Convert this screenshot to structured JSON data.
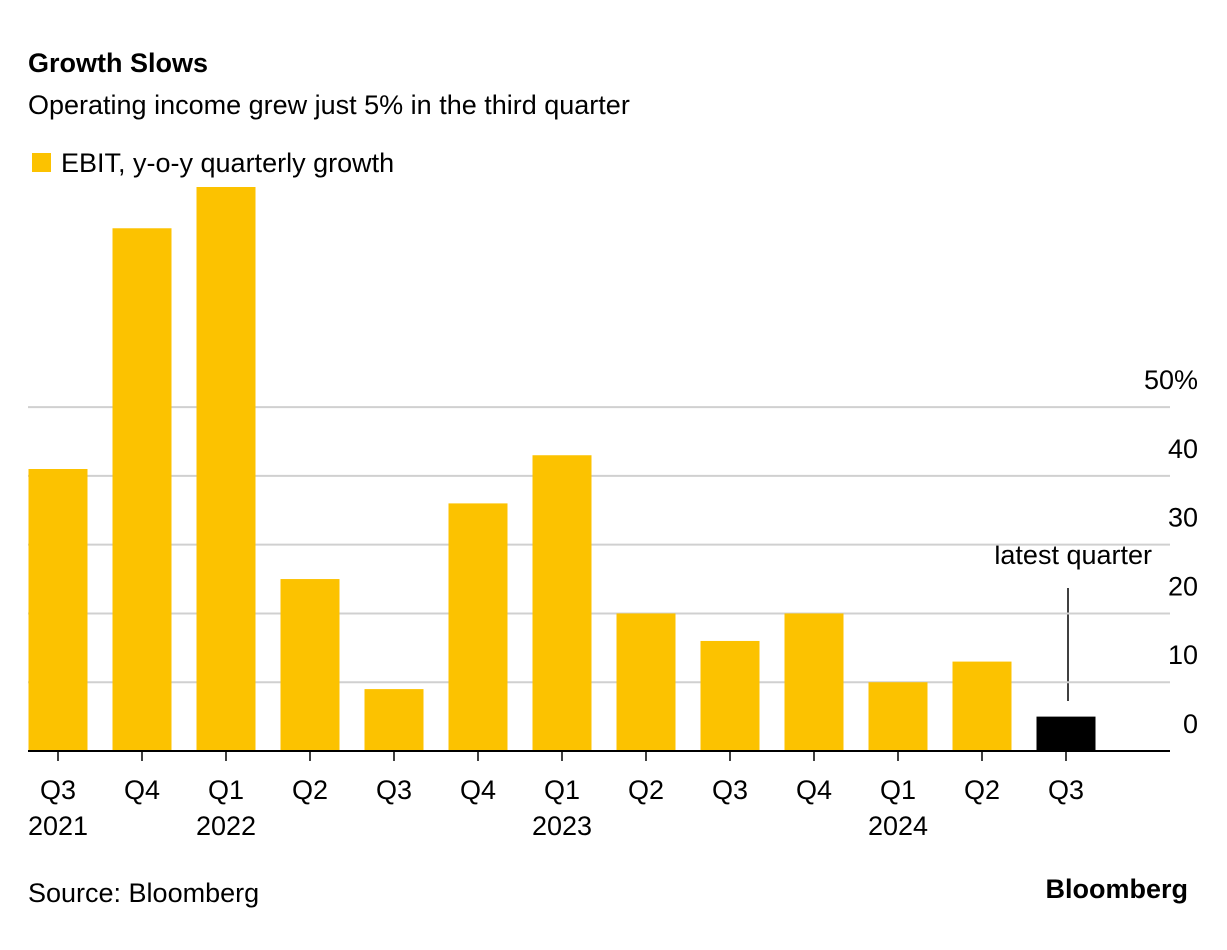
{
  "chart_data": {
    "type": "bar",
    "title": "Growth Slows",
    "subtitle": "Operating income grew just 5% in the third quarter",
    "legend": "EBIT, y-o-y quarterly growth",
    "categories": [
      "Q3",
      "Q4",
      "Q1",
      "Q2",
      "Q3",
      "Q4",
      "Q1",
      "Q2",
      "Q3",
      "Q4",
      "Q1",
      "Q2",
      "Q3"
    ],
    "year_labels": [
      "2021",
      null,
      "2022",
      null,
      null,
      null,
      "2023",
      null,
      null,
      null,
      "2024",
      null,
      null
    ],
    "values": [
      41,
      76,
      82,
      25,
      9,
      36,
      43,
      20,
      16,
      20,
      10,
      13,
      5
    ],
    "color": "#fcc200",
    "colors": [
      "#fcc200",
      "#fcc200",
      "#fcc200",
      "#fcc200",
      "#fcc200",
      "#fcc200",
      "#fcc200",
      "#fcc200",
      "#fcc200",
      "#fcc200",
      "#fcc200",
      "#fcc200",
      "#000000"
    ],
    "ylim": [
      0,
      82
    ],
    "yticks": [
      0,
      10,
      20,
      30,
      40,
      {
        "value": 50,
        "label": "50%"
      }
    ],
    "grid": true,
    "annotation": "latest quarter",
    "source": "Source: Bloomberg",
    "logo": "Bloomberg"
  }
}
